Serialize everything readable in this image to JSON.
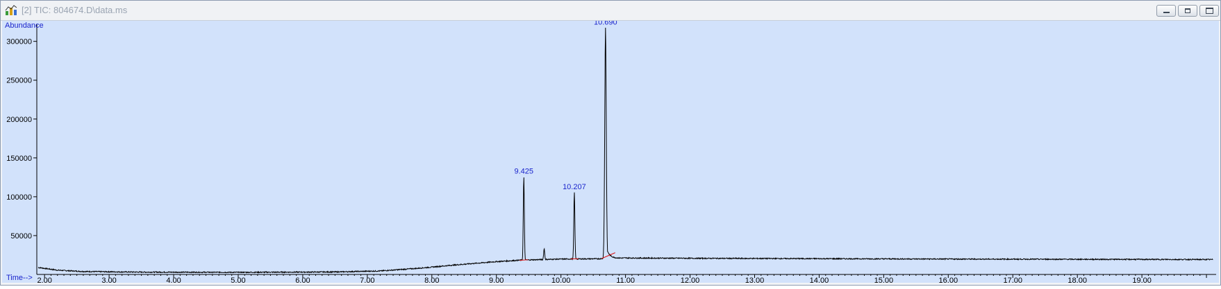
{
  "window": {
    "title": "[2] TIC: 804674.D\\data.ms",
    "icon": "chromatogram-app-icon",
    "buttons": [
      {
        "name": "minimize-button",
        "icon": "minimize-icon"
      },
      {
        "name": "restore-button",
        "icon": "restore-icon"
      },
      {
        "name": "close-button",
        "icon": "close-icon"
      }
    ]
  },
  "colors": {
    "plot_bg": "#d2e2fb",
    "trace": "#000000",
    "label": "#1a24cc",
    "baseline": "#dd1111"
  },
  "chart_data": {
    "type": "line",
    "title": "TIC: 804674.D\\data.ms",
    "ylabel": "Abundance",
    "xlabel": "Time-->",
    "xlim": [
      1.88,
      20.15
    ],
    "ylim": [
      0,
      322000
    ],
    "x_ticks": [
      "2.00",
      "3.00",
      "4.00",
      "5.00",
      "6.00",
      "7.00",
      "8.00",
      "9.00",
      "10.00",
      "11.00",
      "12.00",
      "13.00",
      "14.00",
      "15.00",
      "16.00",
      "17.00",
      "18.00",
      "19.00"
    ],
    "y_ticks": [
      "50000",
      "100000",
      "150000",
      "200000",
      "250000",
      "300000"
    ],
    "baseline_points": [
      [
        1.9,
        9000
      ],
      [
        2.2,
        5500
      ],
      [
        2.6,
        3800
      ],
      [
        3.5,
        3000
      ],
      [
        5.0,
        2700
      ],
      [
        6.5,
        3200
      ],
      [
        7.2,
        4500
      ],
      [
        7.8,
        8000
      ],
      [
        8.4,
        12500
      ],
      [
        9.0,
        16500
      ],
      [
        9.4,
        18500
      ],
      [
        10.0,
        19800
      ],
      [
        10.6,
        20200
      ],
      [
        11.0,
        21200
      ],
      [
        12.0,
        20800
      ],
      [
        14.0,
        20300
      ],
      [
        16.0,
        19800
      ],
      [
        18.0,
        19500
      ],
      [
        20.1,
        19200
      ]
    ],
    "peaks": [
      {
        "rt": 9.425,
        "height": 126000,
        "label": "9.425"
      },
      {
        "rt": 9.74,
        "height": 33000,
        "label": ""
      },
      {
        "rt": 10.207,
        "height": 106000,
        "label": "10.207"
      },
      {
        "rt": 10.69,
        "height": 318000,
        "label": "10.690"
      }
    ],
    "integration_baselines": [
      [
        [
          9.36,
          18200
        ],
        [
          9.49,
          19000
        ]
      ],
      [
        [
          10.15,
          20000
        ],
        [
          10.27,
          20200
        ]
      ],
      [
        [
          10.63,
          20500
        ],
        [
          10.84,
          28000
        ]
      ]
    ]
  }
}
